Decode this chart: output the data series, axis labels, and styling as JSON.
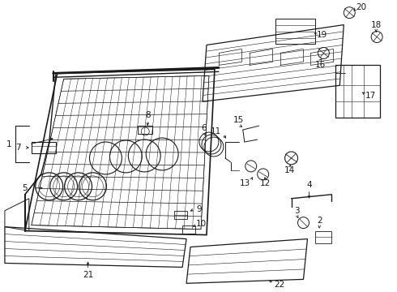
{
  "background_color": "#ffffff",
  "figsize": [
    4.9,
    3.6
  ],
  "dpi": 100,
  "line_color": "#1a1a1a",
  "label_fontsize": 7.5
}
